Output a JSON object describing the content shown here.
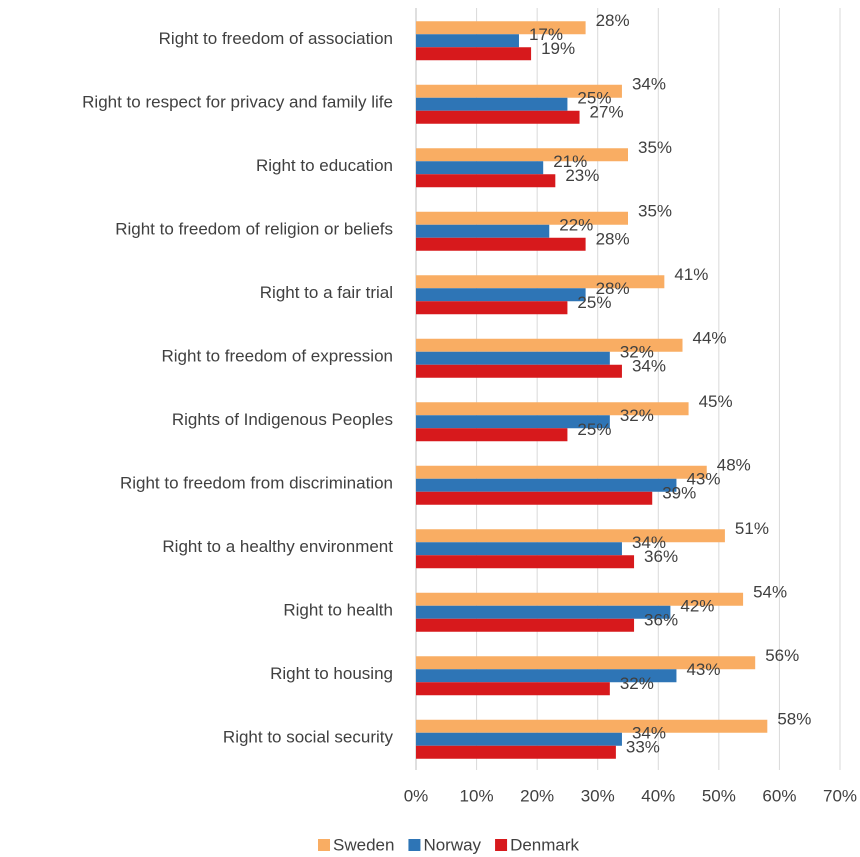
{
  "chart_data": {
    "type": "hbar",
    "categories": [
      "Right to freedom of association",
      "Right to respect for privacy and family life",
      "Right to education",
      "Right to freedom of religion or beliefs",
      "Right to a fair trial",
      "Right to freedom of expression",
      "Rights of Indigenous Peoples",
      "Right to freedom from discrimination",
      "Right to a healthy environment",
      "Right to health",
      "Right to housing",
      "Right to social security"
    ],
    "series": [
      {
        "name": "Sweden",
        "color": "#f9ad63",
        "values": [
          28,
          34,
          35,
          35,
          41,
          44,
          45,
          48,
          51,
          54,
          56,
          58
        ],
        "value_labels": [
          "28%",
          "34%",
          "35%",
          "35%",
          "41%",
          "44%",
          "45%",
          "48%",
          "51%",
          "54%",
          "56%",
          "58%"
        ]
      },
      {
        "name": "Norway",
        "color": "#2e75b6",
        "values": [
          17,
          25,
          21,
          22,
          28,
          32,
          32,
          43,
          34,
          42,
          43,
          34
        ],
        "value_labels": [
          "17%",
          "25%",
          "21%",
          "22%",
          "28%",
          "32%",
          "32%",
          "43%",
          "34%",
          "42%",
          "43%",
          "34%"
        ]
      },
      {
        "name": "Denmark",
        "color": "#d7191c",
        "values": [
          19,
          27,
          23,
          28,
          25,
          34,
          25,
          39,
          36,
          36,
          32,
          33
        ],
        "value_labels": [
          "19%",
          "27%",
          "23%",
          "28%",
          "25%",
          "34%",
          "25%",
          "39%",
          "36%",
          "36%",
          "32%",
          "33%"
        ]
      }
    ],
    "xlim": [
      0,
      70
    ],
    "xticks": [
      {
        "value": 0,
        "label": "0%"
      },
      {
        "value": 10,
        "label": "10%"
      },
      {
        "value": 20,
        "label": "20%"
      },
      {
        "value": 30,
        "label": "30%"
      },
      {
        "value": 40,
        "label": "40%"
      },
      {
        "value": 50,
        "label": "50%"
      },
      {
        "value": 60,
        "label": "60%"
      },
      {
        "value": 70,
        "label": "70%"
      }
    ],
    "grid": true,
    "legend": "bottom"
  }
}
